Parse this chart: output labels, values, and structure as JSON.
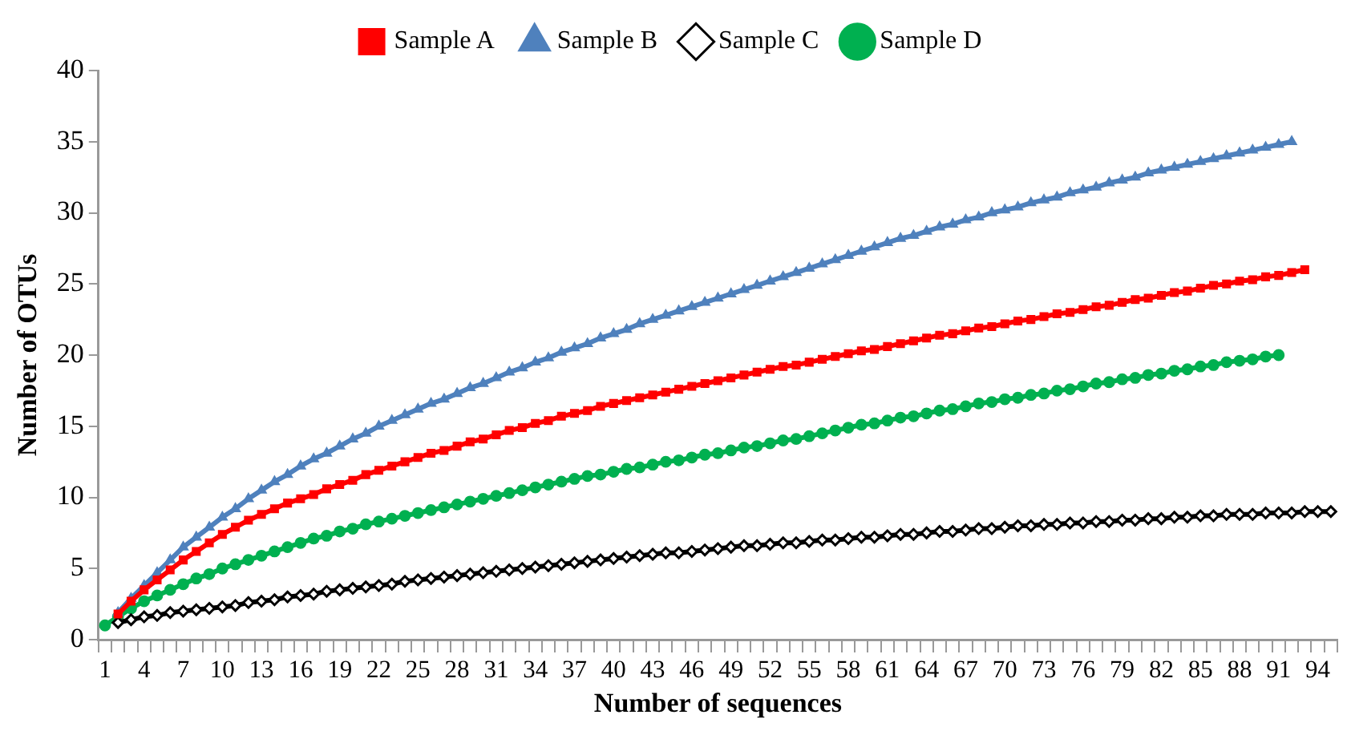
{
  "chart_data": {
    "type": "line",
    "xlabel": "Number of sequences",
    "ylabel": "Number of OTUs",
    "ylim": [
      0,
      40
    ],
    "yticks": [
      0,
      5,
      10,
      15,
      20,
      25,
      30,
      35,
      40
    ],
    "grid": false,
    "legend": "top",
    "line_style": "solid",
    "categories": [
      "1",
      null,
      null,
      "4",
      null,
      null,
      "7",
      null,
      null,
      "10",
      null,
      null,
      "13",
      null,
      null,
      "16",
      null,
      null,
      "19",
      null,
      null,
      "22",
      null,
      null,
      "25",
      null,
      null,
      "28",
      null,
      null,
      "31",
      null,
      null,
      "34",
      null,
      null,
      "37",
      null,
      null,
      "40",
      null,
      null,
      "43",
      null,
      null,
      "46",
      null,
      null,
      "49",
      null,
      null,
      "52",
      null,
      null,
      "55",
      null,
      null,
      "58",
      null,
      null,
      "61",
      null,
      null,
      "64",
      null,
      null,
      "67",
      null,
      null,
      "70",
      null,
      null,
      "73",
      null,
      null,
      "76",
      null,
      null,
      "79",
      null,
      null,
      "82",
      null,
      null,
      "85",
      null,
      null,
      "88",
      null,
      null,
      "91",
      null,
      null,
      "94",
      null
    ],
    "series": [
      {
        "name": "Sample A",
        "color": "#ff0000",
        "marker": "square",
        "values": [
          null,
          1.8,
          2.7,
          3.5,
          4.2,
          4.9,
          5.6,
          6.2,
          6.8,
          7.4,
          7.9,
          8.4,
          8.8,
          9.2,
          9.6,
          9.9,
          10.2,
          10.6,
          10.9,
          11.2,
          11.6,
          11.9,
          12.2,
          12.5,
          12.8,
          13.1,
          13.3,
          13.6,
          13.9,
          14.1,
          14.4,
          14.7,
          14.9,
          15.2,
          15.4,
          15.7,
          15.9,
          16.1,
          16.4,
          16.6,
          16.8,
          17,
          17.2,
          17.4,
          17.6,
          17.8,
          18,
          18.2,
          18.4,
          18.6,
          18.8,
          19,
          19.2,
          19.3,
          19.5,
          19.7,
          19.9,
          20.1,
          20.3,
          20.4,
          20.6,
          20.8,
          21,
          21.2,
          21.4,
          21.5,
          21.7,
          21.9,
          22,
          22.2,
          22.4,
          22.5,
          22.7,
          22.9,
          23,
          23.2,
          23.4,
          23.5,
          23.7,
          23.9,
          24,
          24.2,
          24.4,
          24.5,
          24.7,
          24.9,
          25,
          25.2,
          25.3,
          25.5,
          25.6,
          25.8,
          26,
          null,
          null
        ]
      },
      {
        "name": "Sample B",
        "color": "#4f81bd",
        "marker": "triangle",
        "values": [
          null,
          1.9,
          2.9,
          3.8,
          4.7,
          5.6,
          6.5,
          7.2,
          7.9,
          8.6,
          9.2,
          9.9,
          10.5,
          11.1,
          11.6,
          12.2,
          12.7,
          13.1,
          13.6,
          14.1,
          14.5,
          15,
          15.4,
          15.8,
          16.2,
          16.6,
          16.9,
          17.3,
          17.7,
          18,
          18.4,
          18.8,
          19.1,
          19.5,
          19.8,
          20.2,
          20.5,
          20.8,
          21.2,
          21.5,
          21.8,
          22.2,
          22.5,
          22.8,
          23.1,
          23.4,
          23.7,
          24,
          24.3,
          24.6,
          24.9,
          25.2,
          25.5,
          25.8,
          26.1,
          26.4,
          26.7,
          27,
          27.3,
          27.6,
          27.9,
          28.2,
          28.4,
          28.7,
          29,
          29.2,
          29.5,
          29.7,
          30,
          30.2,
          30.4,
          30.7,
          30.9,
          31.1,
          31.4,
          31.6,
          31.8,
          32.1,
          32.3,
          32.5,
          32.8,
          33,
          33.2,
          33.4,
          33.6,
          33.8,
          34,
          34.2,
          34.4,
          34.6,
          34.8,
          35,
          null,
          null,
          null
        ]
      },
      {
        "name": "Sample C",
        "color": "#000000",
        "marker": "diamond",
        "values": [
          null,
          1.2,
          1.4,
          1.6,
          1.7,
          1.9,
          2,
          2.1,
          2.2,
          2.3,
          2.4,
          2.6,
          2.7,
          2.8,
          3,
          3.1,
          3.2,
          3.4,
          3.5,
          3.6,
          3.7,
          3.8,
          3.9,
          4.1,
          4.2,
          4.3,
          4.4,
          4.5,
          4.6,
          4.7,
          4.8,
          4.9,
          5,
          5.1,
          5.2,
          5.3,
          5.4,
          5.5,
          5.6,
          5.7,
          5.8,
          5.9,
          6,
          6.1,
          6.1,
          6.2,
          6.3,
          6.4,
          6.5,
          6.6,
          6.6,
          6.7,
          6.8,
          6.8,
          6.9,
          7,
          7,
          7.1,
          7.2,
          7.2,
          7.3,
          7.4,
          7.4,
          7.5,
          7.6,
          7.6,
          7.7,
          7.8,
          7.8,
          7.9,
          8,
          8,
          8.1,
          8.1,
          8.2,
          8.2,
          8.3,
          8.3,
          8.4,
          8.4,
          8.5,
          8.5,
          8.6,
          8.6,
          8.7,
          8.7,
          8.8,
          8.8,
          8.8,
          8.9,
          8.9,
          8.9,
          9,
          9,
          9
        ]
      },
      {
        "name": "Sample D",
        "color": "#00b050",
        "marker": "circle",
        "values": [
          1,
          1.6,
          2.2,
          2.7,
          3.1,
          3.5,
          3.9,
          4.3,
          4.6,
          5,
          5.3,
          5.6,
          5.9,
          6.2,
          6.5,
          6.8,
          7.1,
          7.3,
          7.6,
          7.8,
          8.1,
          8.3,
          8.5,
          8.7,
          8.9,
          9.1,
          9.3,
          9.5,
          9.7,
          9.9,
          10.1,
          10.3,
          10.5,
          10.7,
          10.9,
          11.1,
          11.3,
          11.5,
          11.6,
          11.8,
          12,
          12.1,
          12.3,
          12.5,
          12.6,
          12.8,
          13,
          13.1,
          13.3,
          13.5,
          13.6,
          13.8,
          14,
          14.1,
          14.3,
          14.5,
          14.7,
          14.9,
          15.1,
          15.2,
          15.4,
          15.6,
          15.7,
          15.9,
          16.1,
          16.2,
          16.4,
          16.6,
          16.7,
          16.9,
          17,
          17.2,
          17.3,
          17.5,
          17.6,
          17.8,
          18,
          18.1,
          18.3,
          18.4,
          18.6,
          18.7,
          18.9,
          19,
          19.2,
          19.3,
          19.5,
          19.6,
          19.7,
          19.9,
          20,
          null,
          null,
          null,
          null
        ]
      }
    ]
  }
}
